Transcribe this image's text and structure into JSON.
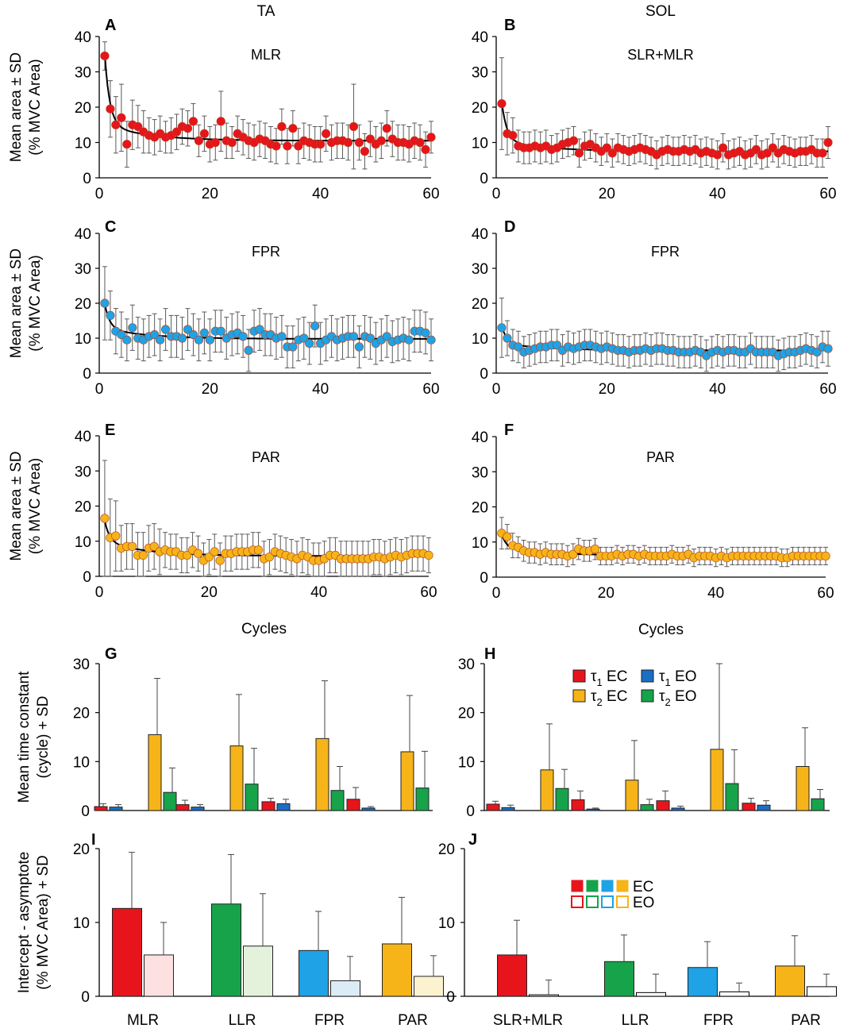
{
  "column_titles": [
    "TA",
    "SOL"
  ],
  "chart_data": [
    {
      "id": "A",
      "type": "scatter",
      "panel_letter": "A",
      "label": "MLR",
      "muscle": "TA",
      "color": "#e8141c",
      "ylabel": [
        "Mean area ± SD",
        "(%  MVC Area)"
      ],
      "xlim": [
        0,
        60
      ],
      "ylim": [
        0,
        40
      ],
      "xticks": [
        0,
        20,
        40,
        60
      ],
      "yticks": [
        0,
        10,
        20,
        30,
        40
      ],
      "x_start": 1,
      "x_step": 1,
      "values": [
        34.5,
        19.5,
        15,
        17,
        9.5,
        15,
        14.5,
        13,
        12,
        11.5,
        12.5,
        11.5,
        12,
        13,
        14.5,
        14,
        16,
        10.5,
        12.5,
        9.5,
        10,
        16,
        10.5,
        10,
        12.5,
        11.5,
        10.5,
        10,
        11,
        10.5,
        9.5,
        9,
        14.5,
        9,
        14,
        9,
        10.5,
        10,
        9.5,
        9.5,
        12.5,
        10,
        10.5,
        10.5,
        10,
        14.5,
        10,
        7.5,
        11,
        9.5,
        10.5,
        14,
        11,
        10,
        10,
        9.5,
        10.5,
        10,
        8,
        11.5
      ],
      "sd": [
        4,
        8,
        8,
        9.5,
        6.5,
        7,
        6,
        6,
        5,
        5,
        5,
        4.5,
        5,
        5,
        5,
        5,
        5,
        4.5,
        5,
        5,
        5,
        8.5,
        5,
        4.5,
        5,
        5,
        5,
        5,
        5,
        5,
        5,
        5,
        5,
        5,
        5,
        5,
        5,
        5,
        5,
        5,
        5,
        5,
        5,
        5,
        5,
        12,
        5,
        5,
        5,
        5,
        5,
        5,
        5,
        5,
        5,
        5,
        5,
        5,
        5,
        4.5
      ],
      "fit": {
        "a1": 20,
        "t1": 0.9,
        "a2": 4.5,
        "t2": 8,
        "c": 10.5
      }
    },
    {
      "id": "B",
      "type": "scatter",
      "panel_letter": "B",
      "label": "SLR+MLR",
      "muscle": "SOL",
      "color": "#e8141c",
      "xlim": [
        0,
        60
      ],
      "ylim": [
        0,
        40
      ],
      "xticks": [
        0,
        20,
        40,
        60
      ],
      "yticks": [
        0,
        10,
        20,
        30,
        40
      ],
      "x_start": 1,
      "x_step": 1,
      "values": [
        21,
        12.5,
        12,
        9,
        8.5,
        8.5,
        9,
        8.5,
        9,
        8,
        8.5,
        9.5,
        10,
        10.5,
        7,
        9,
        9.5,
        8.5,
        7.5,
        8.5,
        7,
        8.5,
        8,
        7.5,
        8,
        8.5,
        8,
        7.5,
        6.5,
        7.5,
        8,
        7.5,
        7.5,
        8,
        7.5,
        8,
        7,
        7.5,
        7,
        6.5,
        8.5,
        6.5,
        7,
        7.5,
        6.5,
        7,
        8,
        6.5,
        7,
        8.5,
        7,
        8,
        7.5,
        7,
        7.5,
        7.5,
        8,
        7,
        7,
        10
      ],
      "sd": [
        13,
        6,
        5,
        4.5,
        4.5,
        4.5,
        4.5,
        4.5,
        4.5,
        4,
        4,
        4,
        4,
        4,
        4,
        4,
        4,
        4,
        4,
        4,
        4,
        4,
        4,
        4,
        4,
        4,
        4,
        4,
        4,
        4,
        4,
        4,
        4,
        4,
        4,
        4,
        4,
        4,
        4,
        4,
        4,
        4,
        4,
        4,
        4,
        4,
        4,
        4,
        4,
        4,
        4,
        4,
        4,
        4,
        4,
        4,
        4,
        4,
        4,
        4.5
      ],
      "fit": {
        "a1": 11,
        "t1": 0.9,
        "a2": 3,
        "t2": 8,
        "c": 7.5
      }
    },
    {
      "id": "C",
      "type": "scatter",
      "panel_letter": "C",
      "label": "FPR",
      "muscle": "TA",
      "color": "#1fa2e6",
      "ylabel": [
        "Mean area ± SD",
        "(%  MVC Area)"
      ],
      "xlim": [
        0,
        60
      ],
      "ylim": [
        0,
        40
      ],
      "xticks": [
        0,
        20,
        40,
        60
      ],
      "yticks": [
        0,
        10,
        20,
        30,
        40
      ],
      "x_start": 1,
      "x_step": 1,
      "values": [
        20,
        16.5,
        12,
        11,
        9.5,
        13,
        10,
        9.5,
        10.5,
        11,
        9.5,
        12.5,
        10.5,
        10.5,
        10,
        12.5,
        11,
        9.5,
        11.5,
        9.5,
        12,
        12,
        10,
        11,
        11.5,
        10.5,
        6.5,
        12,
        12.5,
        11,
        11,
        10,
        10.5,
        7.5,
        7.5,
        9.5,
        10,
        8.5,
        13.5,
        8.5,
        9.5,
        10.5,
        9.5,
        10,
        10.5,
        10.5,
        7.5,
        10.5,
        10,
        8.5,
        9.5,
        10.5,
        9,
        9.5,
        10,
        9.5,
        12,
        12,
        11.5,
        9.5
      ],
      "sd": [
        10.5,
        7,
        6.5,
        6.5,
        6,
        6.5,
        6,
        6,
        6,
        6,
        6,
        6,
        6,
        6,
        6,
        6,
        6,
        6,
        6,
        6,
        6,
        6,
        6,
        6,
        6,
        6,
        6,
        6,
        6,
        6,
        6,
        6,
        6,
        6,
        6,
        6,
        6,
        6,
        6,
        6,
        6,
        6,
        6,
        6,
        6,
        6,
        6,
        6,
        6,
        6,
        6,
        6,
        6,
        6,
        6,
        6,
        6,
        6,
        6,
        6
      ],
      "fit": {
        "a1": 7,
        "t1": 0.9,
        "a2": 3,
        "t2": 8,
        "c": 9.8
      }
    },
    {
      "id": "D",
      "type": "scatter",
      "panel_letter": "D",
      "label": "FPR",
      "muscle": "SOL",
      "color": "#1fa2e6",
      "xlim": [
        0,
        60
      ],
      "ylim": [
        0,
        40
      ],
      "xticks": [
        0,
        20,
        40,
        60
      ],
      "yticks": [
        0,
        10,
        20,
        30,
        40
      ],
      "x_start": 1,
      "x_step": 1,
      "values": [
        13,
        10,
        8,
        7.5,
        6,
        6.5,
        7,
        7.5,
        7.5,
        8,
        8,
        6.5,
        7.5,
        7,
        7.5,
        8,
        8,
        7.5,
        7,
        7.5,
        7,
        6.5,
        6.5,
        6,
        6.5,
        6.5,
        7,
        6.5,
        7,
        7,
        6.5,
        6.5,
        6,
        6,
        6,
        6.5,
        6,
        5,
        6,
        6.5,
        6,
        6.5,
        6.5,
        6,
        6,
        7,
        6,
        6,
        6,
        6,
        5,
        5.5,
        6,
        6,
        6.5,
        7,
        6.5,
        6,
        7.5,
        7
      ],
      "sd": [
        8.5,
        5,
        4.5,
        4.5,
        4.5,
        4.5,
        4.5,
        4.5,
        4.5,
        4.5,
        4.5,
        4.5,
        4.5,
        4.5,
        4.5,
        4.5,
        4.5,
        4.5,
        4.5,
        4.5,
        4.5,
        4.5,
        4.5,
        4.5,
        4.5,
        4.5,
        4.5,
        4.5,
        4.5,
        4.5,
        4.5,
        4.5,
        4.5,
        4.5,
        4.5,
        4.5,
        4.5,
        4.5,
        4.5,
        4.5,
        4.5,
        4.5,
        4.5,
        4.5,
        4.5,
        4.5,
        4.5,
        4.5,
        4.5,
        4.5,
        4.5,
        4.5,
        4.5,
        4.5,
        4.5,
        4.5,
        4.5,
        4.5,
        4.5,
        5
      ],
      "fit": {
        "a1": 5,
        "t1": 0.9,
        "a2": 2,
        "t2": 8,
        "c": 6.5
      }
    },
    {
      "id": "E",
      "type": "scatter",
      "panel_letter": "E",
      "label": "PAR",
      "muscle": "TA",
      "color": "#f6b418",
      "ylabel": [
        "Mean area ± SD",
        "(%  MVC Area)"
      ],
      "xlabel": "Cycles",
      "xlim": [
        0,
        60
      ],
      "ylim": [
        0,
        40
      ],
      "xticks": [
        0,
        20,
        40,
        60
      ],
      "yticks": [
        0,
        10,
        20,
        30,
        40
      ],
      "x_start": 1,
      "x_step": 1,
      "values": [
        16.5,
        11,
        11.5,
        8,
        8.5,
        8.5,
        6,
        6,
        8,
        8.5,
        7,
        7.5,
        7,
        7,
        6,
        6,
        7.5,
        6.5,
        4.5,
        5.5,
        7,
        4.5,
        6.5,
        6.5,
        7,
        7,
        7,
        7.5,
        7.5,
        5,
        5.5,
        7,
        6.5,
        6,
        5.5,
        5,
        6,
        5.5,
        4.5,
        4.5,
        5,
        6,
        6,
        5,
        5,
        5,
        5,
        5,
        5,
        5.5,
        5.5,
        5,
        5.5,
        6,
        5.5,
        6,
        6.5,
        6.5,
        6.5,
        6
      ],
      "sd": [
        16.5,
        11,
        10,
        6.5,
        6.5,
        6.5,
        6.5,
        6.5,
        6.5,
        6.5,
        6.5,
        5,
        5,
        5,
        5,
        5,
        5,
        5,
        5,
        5,
        5,
        5,
        5,
        5,
        5,
        5,
        5,
        5,
        5,
        5,
        5,
        5,
        5,
        5,
        5,
        5,
        5,
        5,
        5,
        5,
        5,
        5,
        5,
        5,
        5,
        5,
        5,
        5,
        5,
        5,
        5,
        5,
        5,
        5,
        5,
        5,
        5,
        5,
        5,
        5
      ],
      "fit": {
        "a1": 6,
        "t1": 0.9,
        "a2": 4,
        "t2": 8,
        "c": 5.8
      }
    },
    {
      "id": "F",
      "type": "scatter",
      "panel_letter": "F",
      "label": "PAR",
      "muscle": "SOL",
      "color": "#f6b418",
      "xlabel": "Cycles",
      "xlim": [
        0,
        60
      ],
      "ylim": [
        0,
        40
      ],
      "xticks": [
        0,
        20,
        40,
        60
      ],
      "yticks": [
        0,
        10,
        20,
        30,
        40
      ],
      "x_start": 1,
      "x_step": 1,
      "values": [
        12.5,
        11.5,
        9,
        8.5,
        7.5,
        7,
        7,
        6.5,
        7,
        6.5,
        6.5,
        6.5,
        6,
        6.5,
        8,
        7.5,
        7.5,
        8,
        6,
        6,
        6,
        6.5,
        6,
        6.5,
        6.5,
        6,
        6.5,
        6,
        6,
        6,
        6,
        6.5,
        6,
        6,
        6.5,
        5.5,
        6,
        6,
        6,
        5.5,
        6,
        5.5,
        6,
        6,
        6,
        6,
        6,
        6,
        6,
        6,
        6,
        5.5,
        5.5,
        6,
        6,
        6,
        6,
        6,
        6,
        6
      ],
      "sd": [
        4.5,
        3.5,
        3.5,
        3,
        3,
        3,
        3,
        3,
        3,
        3,
        3,
        3,
        3,
        3,
        3,
        3,
        3,
        3,
        2.5,
        2.5,
        2.5,
        2.5,
        2.5,
        2.5,
        2.5,
        2.5,
        2.5,
        2.5,
        2.5,
        2.5,
        2.5,
        2.5,
        2.5,
        2.5,
        2.5,
        2.5,
        2.5,
        2.5,
        2.5,
        2.5,
        2.5,
        2.5,
        2.5,
        2.5,
        2.5,
        2.5,
        2.5,
        2.5,
        2.5,
        2.5,
        2.5,
        2.5,
        2.5,
        2.5,
        2.5,
        2.5,
        2.5,
        2.5,
        2.5,
        2.5
      ],
      "fit": {
        "a1": 4,
        "t1": 0.9,
        "a2": 2,
        "t2": 8,
        "c": 6.2
      }
    },
    {
      "id": "G",
      "type": "bar",
      "panel_letter": "G",
      "muscle": "TA",
      "ylabel": [
        "Mean time constant",
        "(cycle) + SD"
      ],
      "ylim": [
        0,
        30
      ],
      "yticks": [
        0,
        10,
        20,
        30
      ],
      "groups": [
        "MLR",
        "LLR",
        "FPR",
        "PAR"
      ],
      "series": [
        {
          "name": "τ1 EC",
          "color": "#e8141c",
          "values": [
            0.8,
            1.2,
            1.8,
            2.3
          ],
          "sd": [
            0.6,
            0.9,
            0.7,
            2.4
          ]
        },
        {
          "name": "τ1 EO",
          "color": "#1a6ec5",
          "values": [
            0.7,
            0.7,
            1.4,
            0.5
          ],
          "sd": [
            0.5,
            0.5,
            0.9,
            0.3
          ]
        },
        {
          "name": "τ2 EC",
          "color": "#f6b418",
          "values": [
            15.5,
            13.2,
            14.7,
            12
          ],
          "sd": [
            11.5,
            10.5,
            11.8,
            11.5
          ]
        },
        {
          "name": "τ2 EO",
          "color": "#17a34a",
          "values": [
            3.7,
            5.4,
            4.1,
            4.6
          ],
          "sd": [
            5,
            7.3,
            4.9,
            7.5
          ]
        }
      ]
    },
    {
      "id": "H",
      "type": "bar",
      "panel_letter": "H",
      "muscle": "SOL",
      "ylim": [
        0,
        30
      ],
      "yticks": [
        0,
        10,
        20,
        30
      ],
      "groups": [
        "SLR+MLR",
        "LLR",
        "FPR",
        "PAR"
      ],
      "series": [
        {
          "name": "τ1 EC",
          "color": "#e8141c",
          "values": [
            1.3,
            2.2,
            2,
            1.5
          ],
          "sd": [
            0.6,
            1.8,
            2,
            1
          ]
        },
        {
          "name": "τ1 EO",
          "color": "#1a6ec5",
          "values": [
            0.6,
            0.3,
            0.5,
            1.1
          ],
          "sd": [
            0.5,
            0.2,
            0.4,
            0.9
          ]
        },
        {
          "name": "τ2 EC",
          "color": "#f6b418",
          "values": [
            8.3,
            6.2,
            12.5,
            9
          ],
          "sd": [
            9.4,
            8.1,
            17.5,
            7.9
          ]
        },
        {
          "name": "τ2 EO",
          "color": "#17a34a",
          "values": [
            4.5,
            1.2,
            5.5,
            2.4
          ],
          "sd": [
            3.9,
            1.1,
            6.9,
            1.9
          ]
        }
      ],
      "legend": [
        {
          "symbol": "τ",
          "sub": "1",
          "text": " EC",
          "color": "#e8141c"
        },
        {
          "symbol": "τ",
          "sub": "1",
          "text": " EO",
          "color": "#1a6ec5"
        },
        {
          "symbol": "τ",
          "sub": "2",
          "text": " EC",
          "color": "#f6b418"
        },
        {
          "symbol": "τ",
          "sub": "2",
          "text": " EO",
          "color": "#17a34a"
        }
      ]
    },
    {
      "id": "I",
      "type": "bar",
      "panel_letter": "I",
      "muscle": "TA",
      "ylabel": [
        "Intercept - asymptote",
        "(%  MVC Area) + SD"
      ],
      "ylim": [
        0,
        20
      ],
      "yticks": [
        0,
        10,
        20
      ],
      "groups": [
        "MLR",
        "LLR",
        "FPR",
        "PAR"
      ],
      "series": [
        {
          "name": "EC",
          "values": [
            11.9,
            12.5,
            6.2,
            7.1
          ],
          "sd": [
            7.6,
            6.7,
            5.3,
            6.3
          ],
          "fill": [
            "#e8141c",
            "#17a34a",
            "#1fa2e6",
            "#f6b418"
          ]
        },
        {
          "name": "EO",
          "values": [
            5.6,
            6.8,
            2.1,
            2.7
          ],
          "sd": [
            4.4,
            7.1,
            3.3,
            2.8
          ],
          "fill": [
            "#fde0e0",
            "#e4f2dc",
            "#dcecf6",
            "#fdf2d0"
          ]
        }
      ]
    },
    {
      "id": "J",
      "type": "bar",
      "panel_letter": "J",
      "muscle": "SOL",
      "ylim": [
        0,
        20
      ],
      "yticks": [
        0,
        10,
        20
      ],
      "groups": [
        "SLR+MLR",
        "LLR",
        "FPR",
        "PAR"
      ],
      "series": [
        {
          "name": "EC",
          "values": [
            5.6,
            4.7,
            3.9,
            4.1
          ],
          "sd": [
            4.7,
            3.6,
            3.5,
            4.1
          ],
          "fill": [
            "#e8141c",
            "#17a34a",
            "#1fa2e6",
            "#f6b418"
          ]
        },
        {
          "name": "EO",
          "values": [
            0.2,
            0.5,
            0.6,
            1.3
          ],
          "sd": [
            2,
            2.5,
            1.2,
            1.7
          ],
          "fill": [
            "#ffffff",
            "#ffffff",
            "#ffffff",
            "#ffffff"
          ]
        }
      ],
      "legend": [
        {
          "label": "EC",
          "filled": true,
          "colors": [
            "#e8141c",
            "#17a34a",
            "#1fa2e6",
            "#f6b418"
          ]
        },
        {
          "label": "EO",
          "filled": false,
          "colors": [
            "#e8141c",
            "#17a34a",
            "#1fa2e6",
            "#f6b418"
          ]
        }
      ]
    }
  ]
}
